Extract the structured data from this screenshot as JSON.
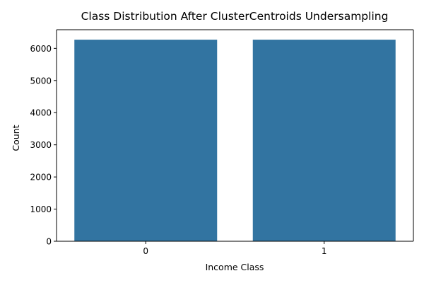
{
  "chart_data": {
    "type": "bar",
    "title": "Class Distribution After ClusterCentroids Undersampling",
    "xlabel": "Income Class",
    "ylabel": "Count",
    "categories": [
      "0",
      "1"
    ],
    "values": [
      6270,
      6270
    ],
    "ylim": [
      0,
      6580
    ],
    "yticks": [
      0,
      1000,
      2000,
      3000,
      4000,
      5000,
      6000
    ],
    "yticklabels": [
      "0",
      "1000",
      "2000",
      "3000",
      "4000",
      "5000",
      "6000"
    ],
    "bar_color": "#3274a1",
    "grid": false,
    "legend": "none"
  }
}
